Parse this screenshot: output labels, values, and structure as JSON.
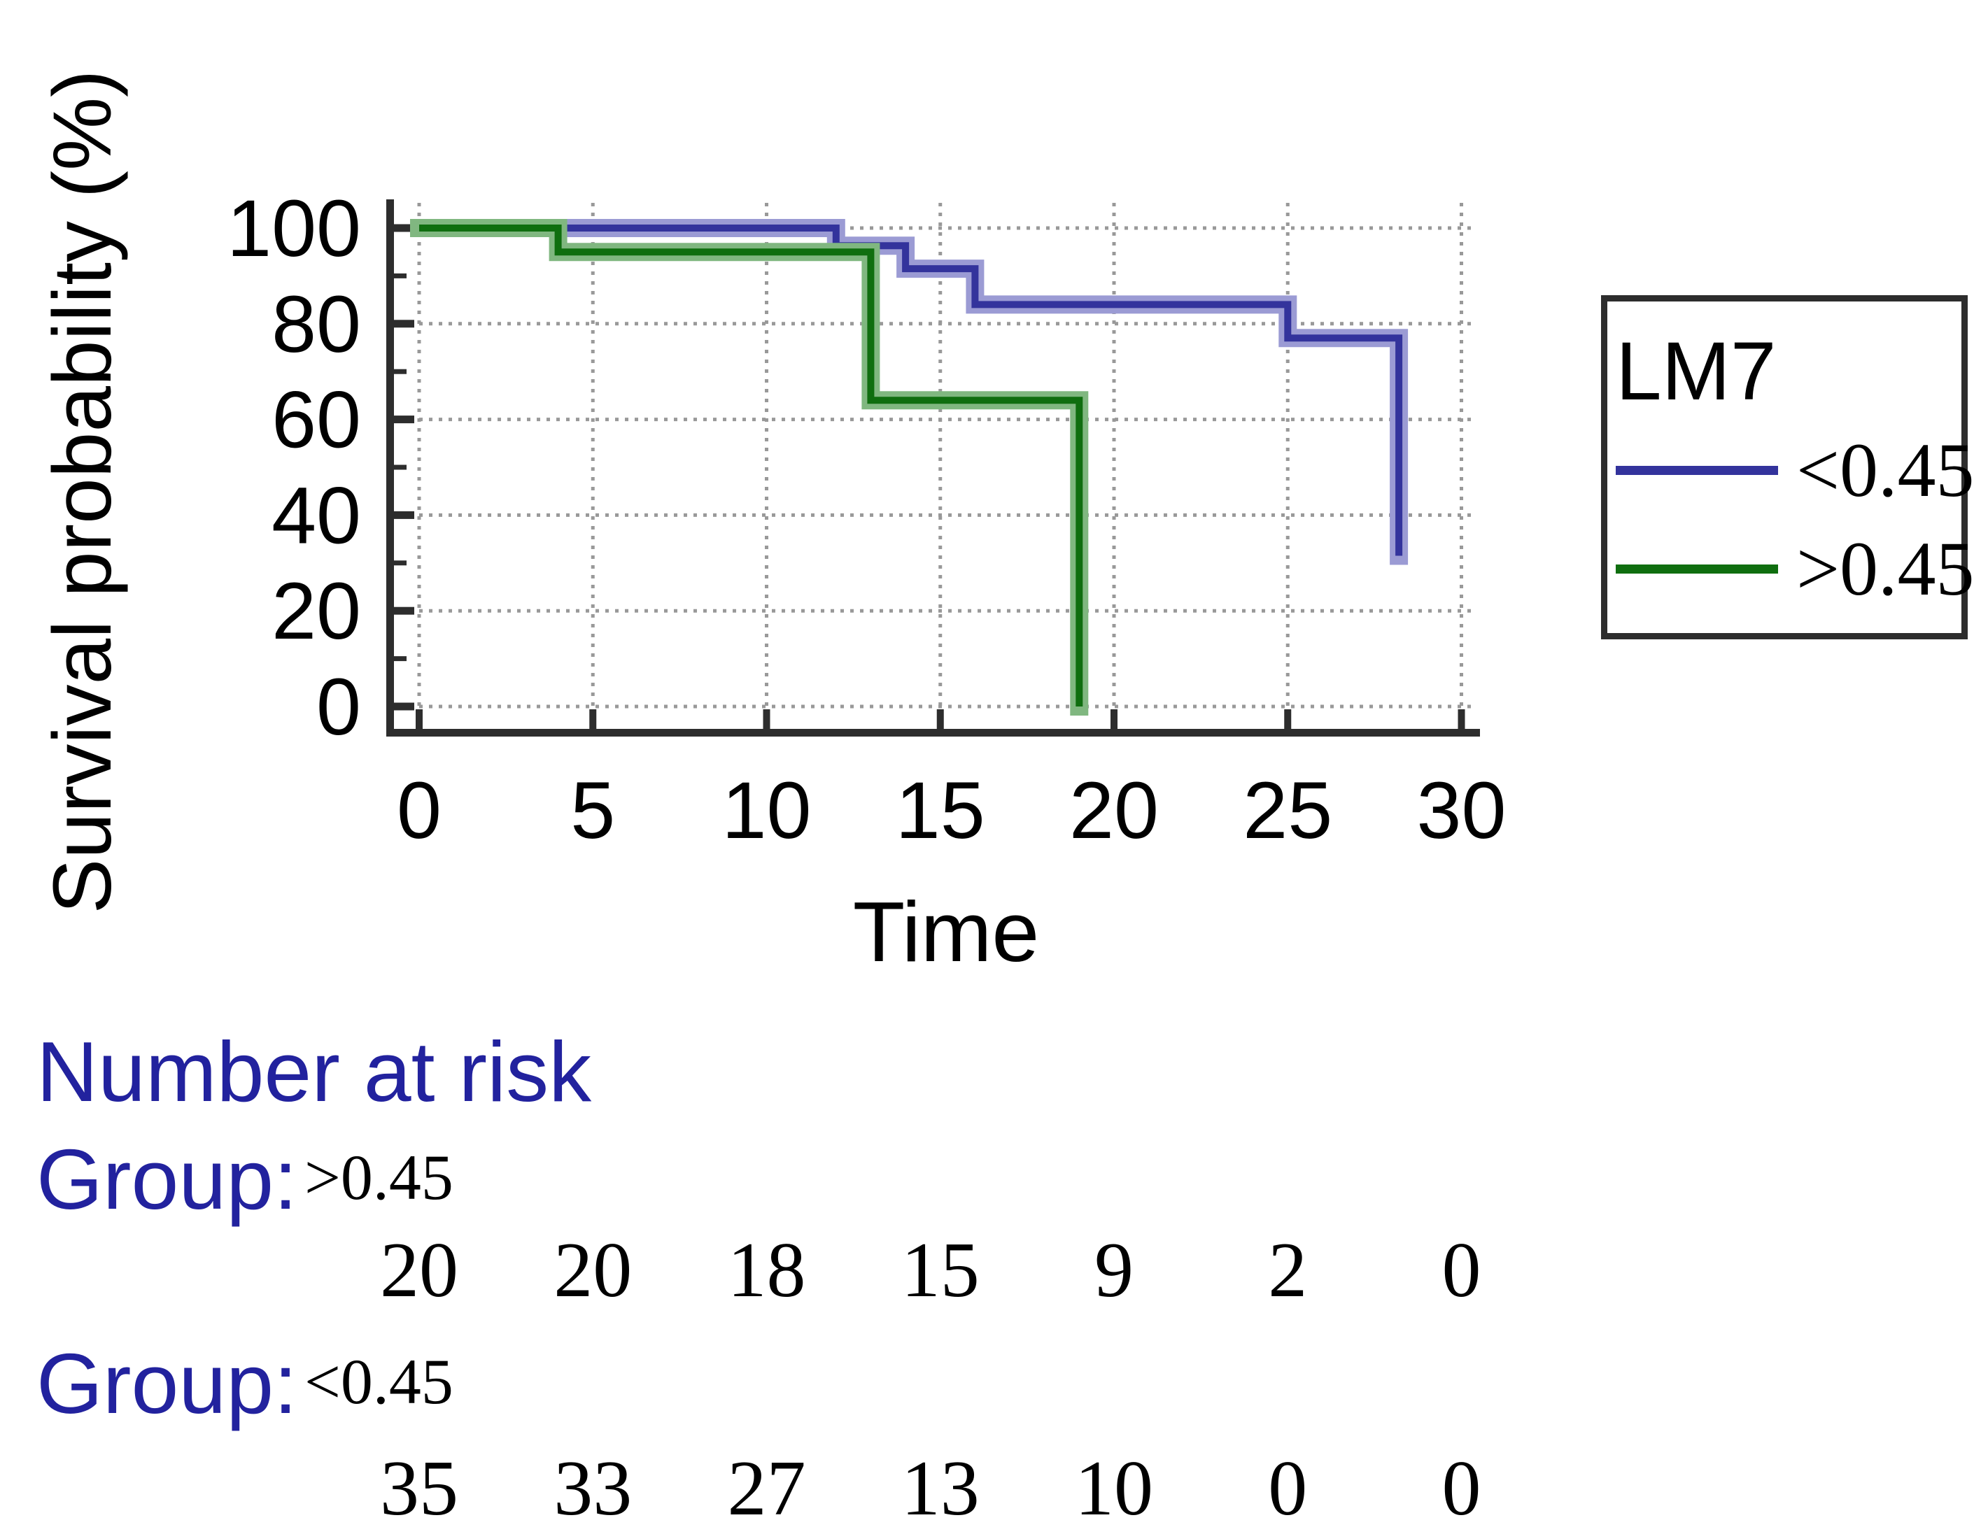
{
  "chart_data": {
    "type": "line",
    "subtype": "kaplan-meier-step",
    "title": "",
    "xlabel": "Time",
    "ylabel": "Survival probability (%)",
    "xlim": [
      0,
      30
    ],
    "ylim": [
      0,
      100
    ],
    "xticks": [
      0,
      5,
      10,
      15,
      20,
      25,
      30
    ],
    "yticks": [
      0,
      20,
      40,
      60,
      80,
      100
    ],
    "yticks_minor": [
      10,
      30,
      50,
      70,
      90
    ],
    "grid": true,
    "legend": {
      "title": "LM7",
      "position": "right",
      "entries": [
        {
          "label": "<0.45",
          "color": "#33339c"
        },
        {
          "label": ">0.45",
          "color": "#0f6e0f"
        }
      ]
    },
    "series": [
      {
        "name": "<0.45",
        "color": "#33339c",
        "halo_color": "#9b9bd4",
        "points": [
          [
            0,
            100
          ],
          [
            12,
            100
          ],
          [
            12,
            96.3
          ],
          [
            14,
            96.3
          ],
          [
            14,
            91.5
          ],
          [
            16,
            91.5
          ],
          [
            16,
            84
          ],
          [
            25,
            84
          ],
          [
            25,
            77
          ],
          [
            28.2,
            77
          ],
          [
            28.2,
            31.5
          ]
        ]
      },
      {
        "name": ">0.45",
        "color": "#0f6e0f",
        "halo_color": "#80b780",
        "points": [
          [
            0,
            100
          ],
          [
            4,
            100
          ],
          [
            4,
            95
          ],
          [
            13,
            95
          ],
          [
            13,
            64
          ],
          [
            19,
            64
          ],
          [
            19,
            0
          ]
        ]
      }
    ]
  },
  "risk_table": {
    "title": "Number at risk",
    "group_label": "Group:",
    "times": [
      0,
      5,
      10,
      15,
      20,
      25,
      30
    ],
    "groups": [
      {
        "name": ">0.45",
        "counts": [
          "20",
          "20",
          "18",
          "15",
          "9",
          "2",
          "0"
        ]
      },
      {
        "name": "<0.45",
        "counts": [
          "35",
          "33",
          "27",
          "13",
          "10",
          "0",
          "0"
        ]
      }
    ]
  },
  "colors": {
    "axis": "#2d2d2d",
    "grid": "#999999",
    "tick_text": "#000000",
    "heading_text": "#22229e"
  }
}
